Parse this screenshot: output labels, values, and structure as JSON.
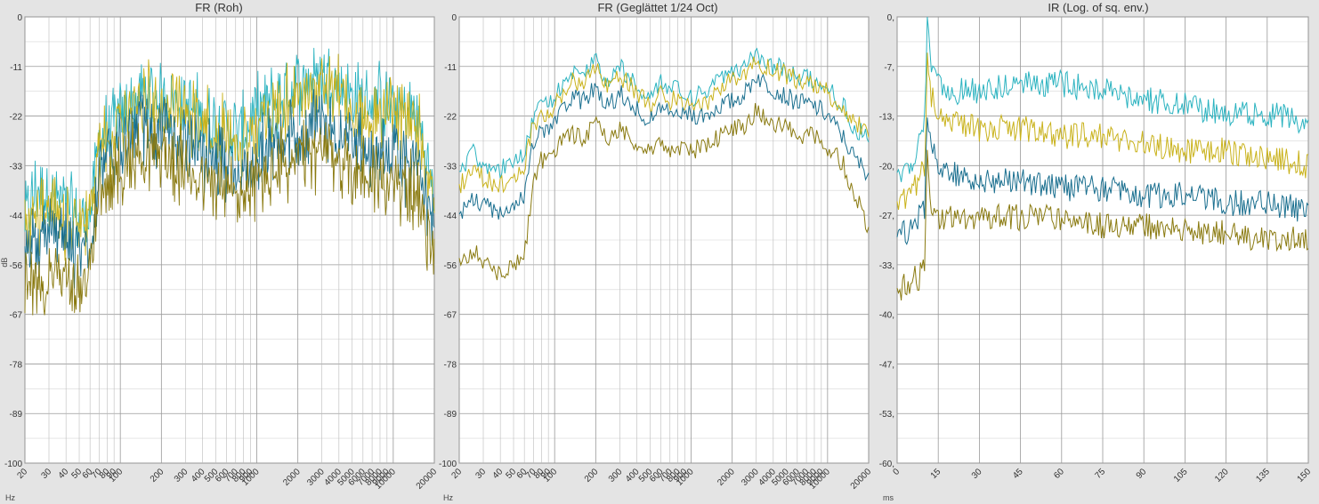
{
  "colors": {
    "series1": "#2bb3c0",
    "series2": "#c9b21b",
    "series3": "#1a6f8f",
    "series4": "#8a7a10",
    "gridMajor": "#999999",
    "gridMinor": "#d6d6d6"
  },
  "chart_data": [
    {
      "type": "line",
      "title": "FR (Roh)",
      "xscale": "log",
      "xlim": [
        20,
        20000
      ],
      "ylim": [
        -100,
        0
      ],
      "ylabel": "dB",
      "xunit": "Hz",
      "ytick_labels": [
        "0",
        "-11",
        "-22",
        "-33",
        "-44",
        "-56",
        "-67",
        "-78",
        "-89",
        "-100"
      ],
      "xtick_labels": [
        "20",
        "30",
        "40",
        "50",
        "60",
        "70",
        "80",
        "90",
        "100",
        "200",
        "300",
        "400",
        "500",
        "600",
        "700",
        "800",
        "900",
        "1000",
        "2000",
        "3000",
        "4000",
        "5000",
        "6000",
        "7000",
        "8000",
        "9000",
        "10000",
        "20000"
      ],
      "grid": true,
      "series": [
        {
          "color": "#2bb3c0",
          "x": [
            20,
            25,
            30,
            40,
            50,
            60,
            70,
            90,
            120,
            150,
            200,
            300,
            500,
            800,
            1000,
            1500,
            2000,
            3000,
            4000,
            5000,
            7000,
            10000,
            15000,
            20000
          ],
          "y": [
            -45,
            -38,
            -40,
            -42,
            -46,
            -44,
            -28,
            -24,
            -20,
            -17,
            -18,
            -20,
            -24,
            -26,
            -22,
            -18,
            -15,
            -13,
            -15,
            -18,
            -19,
            -20,
            -22,
            -40
          ]
        },
        {
          "color": "#c9b21b",
          "x": [
            20,
            25,
            30,
            40,
            50,
            60,
            70,
            90,
            120,
            150,
            200,
            300,
            500,
            800,
            1000,
            1500,
            2000,
            3000,
            4000,
            5000,
            7000,
            10000,
            15000,
            20000
          ],
          "y": [
            -48,
            -44,
            -42,
            -46,
            -48,
            -46,
            -30,
            -26,
            -22,
            -19,
            -20,
            -22,
            -26,
            -28,
            -25,
            -21,
            -18,
            -16,
            -18,
            -20,
            -22,
            -22,
            -24,
            -42
          ]
        },
        {
          "color": "#1a6f8f",
          "x": [
            20,
            25,
            30,
            40,
            50,
            60,
            70,
            90,
            120,
            150,
            200,
            300,
            500,
            800,
            1000,
            1500,
            2000,
            3000,
            4000,
            5000,
            7000,
            10000,
            15000,
            20000
          ],
          "y": [
            -52,
            -50,
            -48,
            -50,
            -52,
            -50,
            -34,
            -30,
            -26,
            -24,
            -25,
            -28,
            -32,
            -34,
            -31,
            -28,
            -26,
            -24,
            -26,
            -28,
            -30,
            -32,
            -34,
            -48
          ]
        },
        {
          "color": "#8a7a10",
          "x": [
            20,
            25,
            30,
            40,
            50,
            60,
            70,
            90,
            120,
            150,
            200,
            300,
            500,
            800,
            1000,
            1500,
            2000,
            3000,
            4000,
            5000,
            7000,
            10000,
            15000,
            20000
          ],
          "y": [
            -60,
            -62,
            -58,
            -60,
            -62,
            -58,
            -40,
            -36,
            -32,
            -30,
            -31,
            -34,
            -38,
            -40,
            -37,
            -34,
            -32,
            -30,
            -32,
            -34,
            -36,
            -38,
            -40,
            -55
          ]
        }
      ]
    },
    {
      "type": "line",
      "title": "FR (Geglättet 1/24 Oct)",
      "xscale": "log",
      "xlim": [
        20,
        20000
      ],
      "ylim": [
        -100,
        0
      ],
      "xunit": "Hz",
      "ytick_labels": [
        "0",
        "-11",
        "-22",
        "-33",
        "-44",
        "-56",
        "-67",
        "-78",
        "-89",
        "-100"
      ],
      "xtick_labels": [
        "20",
        "30",
        "40",
        "50",
        "60",
        "70",
        "80",
        "90",
        "100",
        "200",
        "300",
        "400",
        "500",
        "600",
        "700",
        "800",
        "900",
        "1000",
        "2000",
        "3000",
        "4000",
        "5000",
        "6000",
        "7000",
        "8000",
        "9000",
        "10000",
        "20000"
      ],
      "grid": true,
      "series": [
        {
          "color": "#2bb3c0",
          "x": [
            20,
            25,
            30,
            40,
            50,
            60,
            70,
            80,
            100,
            130,
            160,
            200,
            250,
            300,
            400,
            500,
            600,
            700,
            800,
            1000,
            1300,
            1600,
            2000,
            2500,
            3000,
            3500,
            4000,
            5000,
            6000,
            8000,
            10000,
            13000,
            16000,
            20000
          ],
          "y": [
            -35,
            -30,
            -33,
            -34,
            -32,
            -30,
            -22,
            -20,
            -18,
            -12,
            -13,
            -10,
            -15,
            -11,
            -16,
            -18,
            -14,
            -17,
            -16,
            -18,
            -17,
            -14,
            -13,
            -11,
            -8,
            -10,
            -11,
            -12,
            -13,
            -14,
            -16,
            -20,
            -25,
            -27
          ]
        },
        {
          "color": "#c9b21b",
          "x": [
            20,
            25,
            30,
            40,
            50,
            60,
            70,
            80,
            100,
            130,
            160,
            200,
            250,
            300,
            400,
            500,
            600,
            700,
            800,
            1000,
            1300,
            1600,
            2000,
            2500,
            3000,
            3500,
            4000,
            5000,
            6000,
            8000,
            10000,
            13000,
            16000,
            20000
          ],
          "y": [
            -38,
            -34,
            -36,
            -38,
            -36,
            -33,
            -24,
            -22,
            -20,
            -14,
            -15,
            -12,
            -16,
            -13,
            -17,
            -20,
            -16,
            -19,
            -18,
            -20,
            -19,
            -16,
            -14,
            -13,
            -10,
            -11,
            -12,
            -13,
            -14,
            -15,
            -17,
            -20,
            -24,
            -25
          ]
        },
        {
          "color": "#1a6f8f",
          "x": [
            20,
            25,
            30,
            40,
            50,
            60,
            70,
            80,
            100,
            130,
            160,
            200,
            250,
            300,
            400,
            500,
            600,
            700,
            800,
            1000,
            1300,
            1600,
            2000,
            2500,
            3000,
            3500,
            4000,
            5000,
            6000,
            8000,
            10000,
            13000,
            16000,
            20000
          ],
          "y": [
            -45,
            -40,
            -42,
            -44,
            -42,
            -40,
            -28,
            -26,
            -24,
            -18,
            -19,
            -16,
            -20,
            -17,
            -21,
            -23,
            -20,
            -22,
            -21,
            -22,
            -22,
            -20,
            -19,
            -17,
            -13,
            -15,
            -16,
            -18,
            -19,
            -20,
            -22,
            -27,
            -32,
            -35
          ]
        },
        {
          "color": "#8a7a10",
          "x": [
            20,
            25,
            30,
            40,
            50,
            60,
            70,
            80,
            100,
            130,
            160,
            200,
            250,
            300,
            400,
            500,
            600,
            700,
            800,
            1000,
            1300,
            1600,
            2000,
            2500,
            3000,
            3500,
            4000,
            5000,
            6000,
            8000,
            10000,
            13000,
            16000,
            20000
          ],
          "y": [
            -55,
            -52,
            -55,
            -58,
            -56,
            -54,
            -36,
            -32,
            -30,
            -26,
            -27,
            -24,
            -28,
            -25,
            -28,
            -30,
            -28,
            -30,
            -29,
            -30,
            -29,
            -27,
            -25,
            -24,
            -21,
            -23,
            -24,
            -25,
            -26,
            -27,
            -29,
            -33,
            -40,
            -47
          ]
        }
      ]
    },
    {
      "type": "line",
      "title": "IR (Log. of sq. env.)",
      "xlim": [
        0,
        150
      ],
      "ylim": [
        -60,
        0
      ],
      "xunit": "ms",
      "ytick_labels": [
        "0,",
        "-7,",
        "-13,",
        "-20,",
        "-27,",
        "-33,",
        "-40,",
        "-47,",
        "-53,",
        "-60,"
      ],
      "xtick_labels": [
        "0",
        "15",
        "30",
        "45",
        "60",
        "75",
        "90",
        "105",
        "120",
        "135",
        "150"
      ],
      "grid": true,
      "series": [
        {
          "color": "#2bb3c0",
          "x": [
            0,
            3,
            6,
            8,
            10,
            11,
            12,
            14,
            20,
            30,
            45,
            60,
            75,
            90,
            105,
            120,
            135,
            150
          ],
          "y": [
            -21,
            -20,
            -19,
            -17,
            -14,
            0,
            -6,
            -8,
            -10,
            -10,
            -9,
            -9,
            -10,
            -11,
            -12,
            -13,
            -13,
            -14
          ]
        },
        {
          "color": "#c9b21b",
          "x": [
            0,
            3,
            6,
            8,
            10,
            11,
            12,
            14,
            20,
            30,
            45,
            60,
            75,
            90,
            105,
            120,
            135,
            150
          ],
          "y": [
            -25,
            -24,
            -23,
            -22,
            -20,
            -6,
            -10,
            -12,
            -14,
            -15,
            -15,
            -16,
            -16,
            -17,
            -18,
            -18,
            -19,
            -20
          ]
        },
        {
          "color": "#1a6f8f",
          "x": [
            0,
            3,
            6,
            8,
            10,
            11,
            12,
            14,
            20,
            30,
            45,
            60,
            75,
            90,
            105,
            120,
            135,
            150
          ],
          "y": [
            -30,
            -29,
            -28,
            -27,
            -26,
            -14,
            -17,
            -19,
            -21,
            -22,
            -22,
            -23,
            -23,
            -24,
            -24,
            -25,
            -25,
            -26
          ]
        },
        {
          "color": "#8a7a10",
          "x": [
            0,
            3,
            6,
            8,
            10,
            11,
            12,
            14,
            20,
            30,
            45,
            60,
            75,
            90,
            105,
            120,
            135,
            150
          ],
          "y": [
            -37,
            -36,
            -35,
            -35,
            -34,
            -18,
            -25,
            -27,
            -27,
            -27,
            -27,
            -27,
            -28,
            -28,
            -29,
            -29,
            -30,
            -30
          ]
        }
      ]
    }
  ]
}
